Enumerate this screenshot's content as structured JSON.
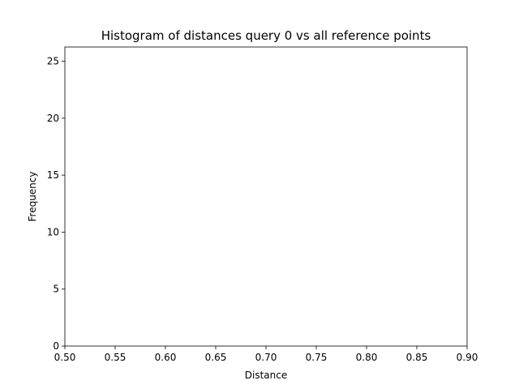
{
  "chart_data": {
    "type": "bar",
    "title": "Histogram of distances query 0 vs all reference points",
    "xlabel": "Distance",
    "ylabel": "Frequency",
    "xlim": [
      0.5,
      0.9
    ],
    "ylim": [
      0,
      26.25
    ],
    "xticks": [
      0.5,
      0.55,
      0.6,
      0.65,
      0.7,
      0.75,
      0.8,
      0.85,
      0.9
    ],
    "xtick_labels": [
      "0.50",
      "0.55",
      "0.60",
      "0.65",
      "0.70",
      "0.75",
      "0.80",
      "0.85",
      "0.90"
    ],
    "yticks": [
      0,
      5,
      10,
      15,
      20,
      25
    ],
    "ytick_labels": [
      "0",
      "5",
      "10",
      "15",
      "20",
      "25"
    ],
    "bins": [],
    "grid": false,
    "legend": "none",
    "colors": {
      "axis": "#000000",
      "background": "#ffffff"
    }
  }
}
